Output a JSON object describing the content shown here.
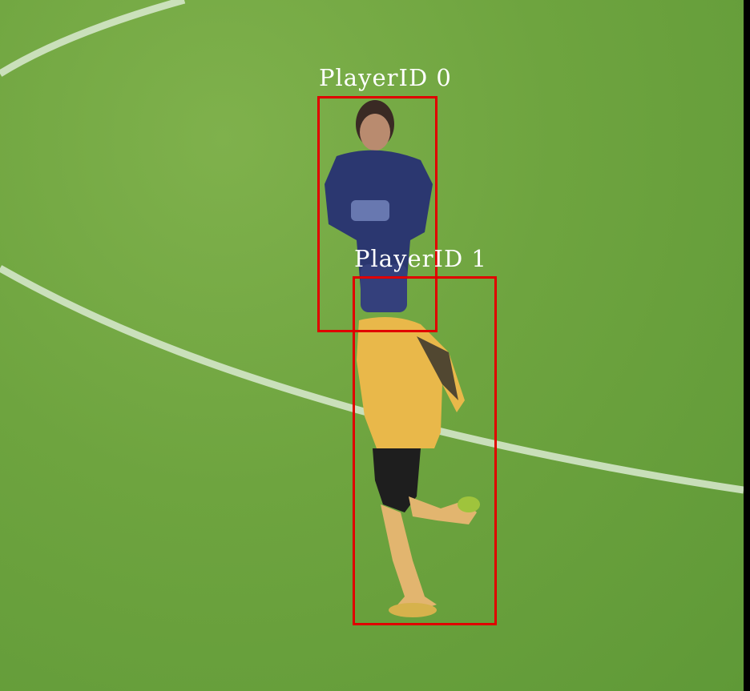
{
  "image": {
    "description_type": "sports-broadcast-frame-with-detection-overlay",
    "colors": {
      "pitch": "#6ea43f",
      "line_marking": "#d9ead0",
      "box_stroke": "#e00000",
      "label_text": "#ffffff",
      "player0_shirt": "#2b3770",
      "player1_shirt": "#e9b84a"
    }
  },
  "detections": [
    {
      "label": "PlayerID 0"
    },
    {
      "label": "PlayerID 1"
    }
  ]
}
